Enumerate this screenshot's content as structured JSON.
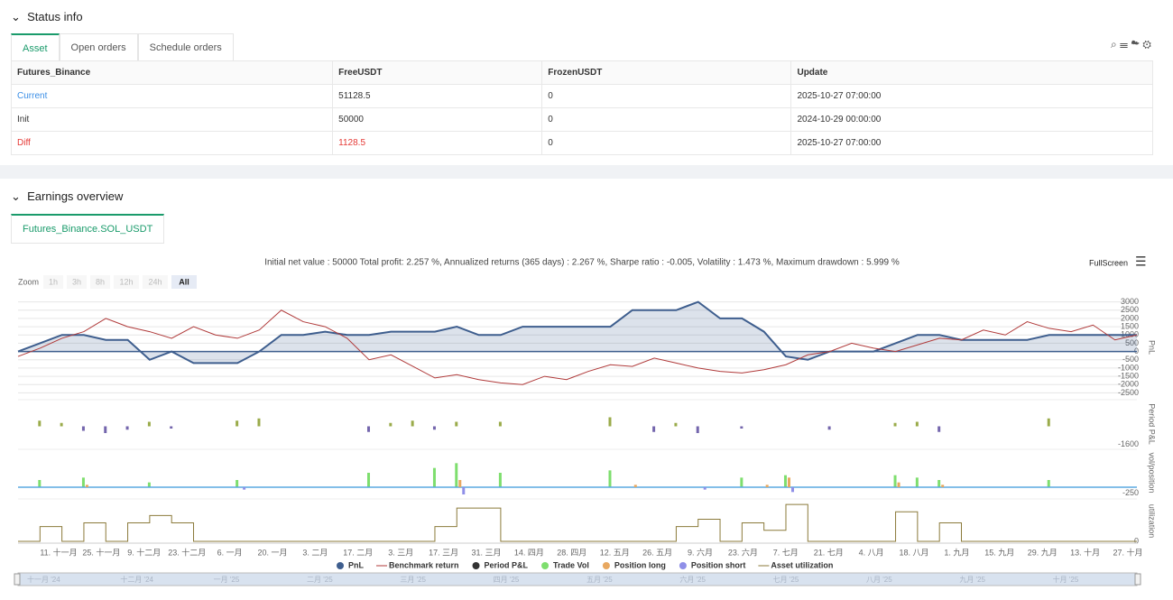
{
  "status": {
    "title": "Status info",
    "tabs": [
      "Asset",
      "Open orders",
      "Schedule orders"
    ],
    "table": {
      "header": [
        "Futures_Binance",
        "FreeUSDT",
        "FrozenUSDT",
        "Update"
      ],
      "rows": [
        [
          "Current",
          "51128.5",
          "0",
          "2025-10-27 07:00:00"
        ],
        [
          "Init",
          "50000",
          "0",
          "2024-10-29 00:00:00"
        ],
        [
          "Diff",
          "1128.5",
          "0",
          "2025-10-27 07:00:00"
        ]
      ]
    }
  },
  "earnings": {
    "title": "Earnings overview",
    "tab": "Futures_Binance.SOL_USDT",
    "chart_data": {
      "type": "line",
      "summary": "Initial net value : 50000 Total profit: 2.257 %, Annualized returns (365 days) : 2.267 %, Sharpe ratio : -0.005, Volatility : 1.473 %, Maximum drawdown : 5.999 %",
      "fullscreen": "FullScreen",
      "zoom_label": "Zoom",
      "zoom_buttons": [
        "1h",
        "3h",
        "8h",
        "12h",
        "24h",
        "All"
      ],
      "x_labels": [
        "11. 十一月",
        "25. 十一月",
        "9. 十二月",
        "23. 十二月",
        "6. 一月",
        "20. 一月",
        "3. 二月",
        "17. 二月",
        "3. 三月",
        "17. 三月",
        "31. 三月",
        "14. 四月",
        "28. 四月",
        "12. 五月",
        "26. 五月",
        "9. 六月",
        "23. 六月",
        "7. 七月",
        "21. 七月",
        "4. 八月",
        "18. 八月",
        "1. 九月",
        "15. 九月",
        "29. 九月",
        "13. 十月",
        "27. 十月"
      ],
      "navigator_labels": [
        "十一月 '24",
        "十二月 '24",
        "一月 '25",
        "二月 '25",
        "三月 '25",
        "四月 '25",
        "五月 '25",
        "六月 '25",
        "七月 '25",
        "八月 '25",
        "九月 '25",
        "十月 '25"
      ],
      "panels": [
        {
          "axis_label": "PnL",
          "ylim": [
            -2750,
            3250
          ],
          "yticks": [
            3000,
            2500,
            2000,
            1500,
            1000,
            500,
            0,
            -500,
            -1000,
            -1500,
            -2000,
            -2500
          ],
          "grid": true,
          "series": [
            {
              "name": "PnL",
              "type": "area",
              "color": "#3e5e8e",
              "values": [
                0,
                500,
                1000,
                1000,
                700,
                700,
                -500,
                0,
                -700,
                -700,
                -700,
                0,
                1000,
                1000,
                1200,
                1000,
                1000,
                1200,
                1200,
                1200,
                1500,
                1000,
                1000,
                1500,
                1500,
                1500,
                1500,
                1500,
                2500,
                2500,
                2500,
                3000,
                2000,
                2000,
                1200,
                -300,
                -500,
                0,
                0,
                0,
                500,
                1000,
                1000,
                700,
                700,
                700,
                700,
                1000,
                1000,
                1000,
                1000,
                1000
              ]
            },
            {
              "name": "Benchmark return",
              "type": "line",
              "color": "#b03a3a",
              "values": [
                -300,
                200,
                800,
                1200,
                2000,
                1500,
                1200,
                800,
                1500,
                1000,
                800,
                1300,
                2500,
                1800,
                1500,
                800,
                -500,
                -200,
                -900,
                -1600,
                -1400,
                -1700,
                -1900,
                -2000,
                -1500,
                -1700,
                -1200,
                -800,
                -900,
                -400,
                -700,
                -1000,
                -1200,
                -1300,
                -1100,
                -800,
                -200,
                0,
                500,
                200,
                0,
                400,
                800,
                700,
                1300,
                1000,
                1800,
                1400,
                1200,
                1600,
                700,
                1000
              ]
            }
          ]
        },
        {
          "axis_label": "Period P&L",
          "ylim": [
            -1800,
            2200
          ],
          "yticks": [
            -1600
          ],
          "grid": false,
          "series": [
            {
              "name": "Period P&L",
              "type": "bar",
              "color": "#333333",
              "positive_color": "#9aab4a",
              "negative_color": "#7466ad",
              "values": [
                null,
                500,
                300,
                -400,
                -600,
                -300,
                400,
                -200,
                null,
                null,
                500,
                700,
                null,
                null,
                null,
                null,
                -500,
                300,
                500,
                -300,
                400,
                null,
                400,
                null,
                null,
                null,
                null,
                800,
                null,
                -500,
                300,
                -600,
                null,
                -200,
                null,
                null,
                null,
                -300,
                null,
                null,
                300,
                400,
                -500,
                null,
                null,
                null,
                null,
                700,
                null,
                null,
                null,
                null
              ]
            }
          ]
        },
        {
          "axis_label": "vol/position",
          "ylim": [
            -300,
            1500
          ],
          "yticks": [
            -250
          ],
          "grid": false,
          "series": [
            {
              "name": "Trade Vol",
              "type": "bar",
              "color": "#7ede6e",
              "values": [
                null,
                300,
                null,
                400,
                null,
                null,
                200,
                null,
                null,
                null,
                300,
                null,
                null,
                null,
                null,
                null,
                600,
                null,
                null,
                800,
                1000,
                null,
                600,
                null,
                null,
                null,
                null,
                700,
                null,
                null,
                null,
                null,
                null,
                400,
                null,
                500,
                null,
                null,
                null,
                null,
                500,
                400,
                300,
                null,
                null,
                null,
                null,
                300,
                null,
                null,
                null,
                null
              ]
            },
            {
              "name": "Position long",
              "type": "bar",
              "color": "#e8a860",
              "values": [
                null,
                null,
                null,
                100,
                null,
                null,
                null,
                null,
                null,
                null,
                null,
                null,
                null,
                null,
                null,
                null,
                null,
                null,
                null,
                null,
                300,
                null,
                null,
                null,
                null,
                null,
                null,
                null,
                100,
                null,
                null,
                null,
                null,
                null,
                100,
                400,
                null,
                null,
                null,
                null,
                200,
                null,
                100,
                null,
                null,
                null,
                null,
                null,
                null,
                null,
                null,
                null
              ]
            },
            {
              "name": "Position short",
              "type": "bar",
              "color": "#8f8fe8",
              "values": [
                null,
                null,
                null,
                null,
                null,
                null,
                null,
                null,
                null,
                null,
                -100,
                null,
                null,
                null,
                null,
                null,
                null,
                null,
                null,
                null,
                -300,
                null,
                null,
                null,
                null,
                null,
                null,
                null,
                null,
                null,
                null,
                -100,
                null,
                null,
                null,
                -200,
                null,
                null,
                null,
                null,
                null,
                null,
                null,
                null,
                null,
                null,
                null,
                null,
                null,
                null,
                null,
                null
              ]
            }
          ]
        },
        {
          "axis_label": "utilization",
          "ylim": [
            0,
            1.1
          ],
          "yticks": [
            0
          ],
          "grid": false,
          "series": [
            {
              "name": "Asset utilization",
              "type": "step",
              "color": "#8b7a3a",
              "values": [
                0,
                0.4,
                0,
                0.5,
                0,
                0.5,
                0.7,
                0.5,
                0,
                0,
                0,
                0,
                0,
                0,
                0,
                0,
                0,
                0,
                0,
                0.4,
                0.9,
                0.9,
                0,
                0,
                0,
                0,
                0,
                0,
                0,
                0,
                0.4,
                0.6,
                0,
                0.5,
                0.3,
                1.0,
                0,
                0,
                0,
                0,
                0.8,
                0,
                0.5,
                0,
                0,
                0,
                0,
                0,
                0,
                0,
                0,
                0
              ]
            }
          ]
        }
      ]
    }
  }
}
